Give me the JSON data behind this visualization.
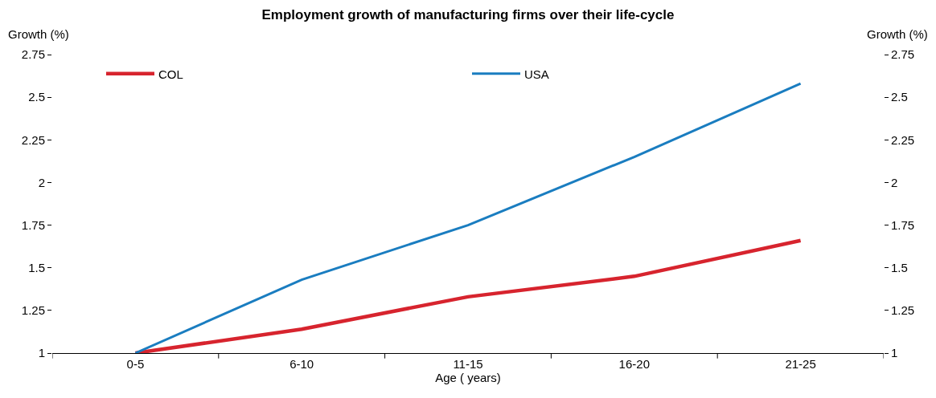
{
  "chart_data": {
    "type": "line",
    "title": "Employment growth of manufacturing firms over their life-cycle",
    "xlabel": "Age ( years)",
    "ylabel": "Growth (%)",
    "y2label": "Growth (%)",
    "categories": [
      "0-5",
      "6-10",
      "11-15",
      "16-20",
      "21-25"
    ],
    "series": [
      {
        "name": "COL",
        "color": "#d7242e",
        "values": [
          1,
          1.14,
          1.33,
          1.45,
          1.66
        ]
      },
      {
        "name": "USA",
        "color": "#1a7dc0",
        "values": [
          1,
          1.43,
          1.75,
          2.15,
          2.58
        ]
      }
    ],
    "ylim": [
      1,
      2.75
    ],
    "yticks": [
      1,
      1.25,
      1.5,
      1.75,
      2,
      2.25,
      2.5,
      2.75
    ],
    "y2lim": [
      1,
      2.75
    ],
    "y2ticks": [
      1,
      1.25,
      1.5,
      1.75,
      2,
      2.25,
      2.5,
      2.75
    ],
    "legend": "top",
    "marker": "none",
    "line_style": "solid"
  }
}
